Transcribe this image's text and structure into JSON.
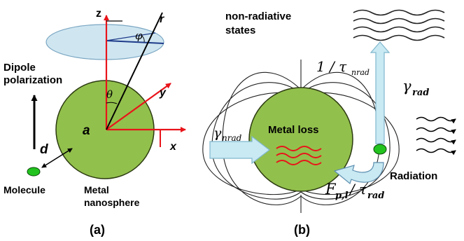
{
  "panel_a": {
    "axes": {
      "z": "z",
      "y": "y",
      "x": "x",
      "r": "r"
    },
    "angles": {
      "phi": "φ",
      "theta": "θ"
    },
    "dipole_line1": "Dipole",
    "dipole_line2": "polarization",
    "radius": "a",
    "distance": "d",
    "molecule": "Molecule",
    "metal_line1": "Metal",
    "metal_line2": "nanosphere",
    "caption": "(a)"
  },
  "panel_b": {
    "nonrad_line1": "non-radiative",
    "nonrad_line2": "states",
    "inv_tau_prefix": "1 / τ",
    "inv_tau_sub": "nrad",
    "gamma_rad_sym": "γ",
    "gamma_rad_sub": "rad",
    "gamma_nrad_sym": "γ",
    "gamma_nrad_sub": "nrad",
    "metal_loss": "Metal loss",
    "radiation": "Radiation",
    "fp_sym": "F",
    "fp_sub": "p,l",
    "fp_div": "/ τ",
    "fp_sub2": "rad",
    "caption": "(b)"
  },
  "colors": {
    "sphere_fill": "#92c04c",
    "sphere_stroke": "#2b3a10",
    "axis_red": "#e8141a",
    "disk_fill": "#cfe6f1",
    "arrow_blue": "#c9e9f3",
    "molecule": "#22c31e"
  }
}
